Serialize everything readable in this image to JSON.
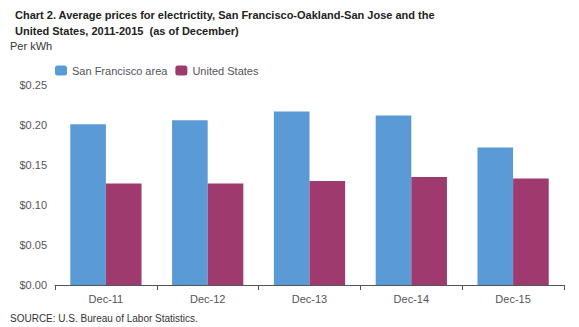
{
  "chart_data": {
    "type": "bar",
    "title": "Chart 2. Average prices for electrictity, San Francisco-Oakland-San Jose and the",
    "subtitle": "United States, 2011-2015  (as of December)",
    "ylabel": "Per kWh",
    "annotations": [
      "SOURCE: U.S. Bureau of Labor Statistics."
    ],
    "categories": [
      "Dec-11",
      "Dec-12",
      "Dec-13",
      "Dec-14",
      "Dec-15"
    ],
    "series": [
      {
        "name": "San Francisco area",
        "color": "#5B9BD5",
        "values": [
          0.201,
          0.206,
          0.217,
          0.212,
          0.172
        ]
      },
      {
        "name": "United States",
        "color": "#9E3A6E",
        "values": [
          0.127,
          0.127,
          0.13,
          0.135,
          0.133
        ]
      }
    ],
    "ylim": [
      0,
      0.25
    ],
    "yticks": [
      {
        "value": 0.0,
        "label": "$0.00"
      },
      {
        "value": 0.05,
        "label": "$0.05"
      },
      {
        "value": 0.1,
        "label": "$0.10"
      },
      {
        "value": 0.15,
        "label": "$0.15"
      },
      {
        "value": 0.2,
        "label": "$0.20"
      },
      {
        "value": 0.25,
        "label": "$0.25"
      }
    ],
    "grid": false,
    "legend": "upper left"
  }
}
